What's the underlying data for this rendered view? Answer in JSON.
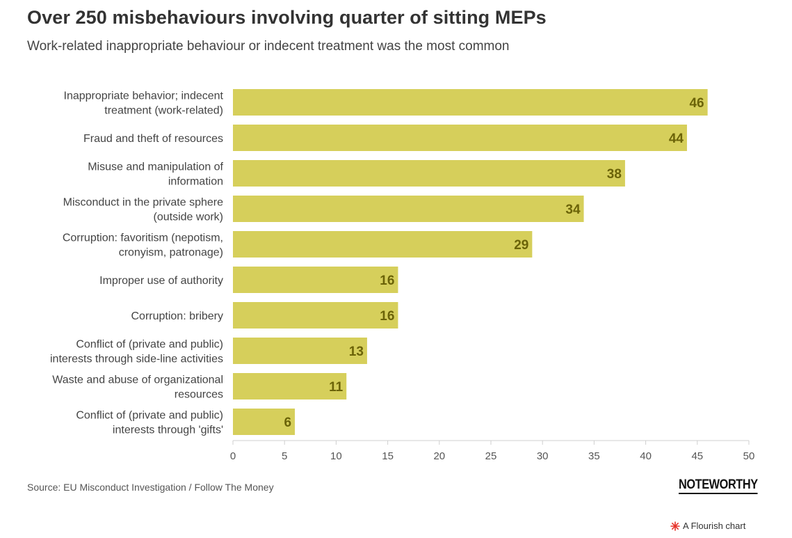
{
  "title": "Over 250 misbehaviours involving quarter of sitting MEPs",
  "subtitle": "Work-related inappropriate behaviour or indecent treatment was the most common",
  "source": "Source: EU Misconduct Investigation / Follow The Money",
  "brand": "NOTEWORTHY",
  "credit": "A Flourish chart",
  "colors": {
    "bar": "#d6cf5b",
    "label": "#6b6308",
    "axis": "#cfcfcf",
    "flourish": "#e6332a"
  },
  "chart_data": {
    "type": "bar",
    "orientation": "horizontal",
    "categories": [
      [
        "Inappropriate behavior; indecent",
        "treatment (work-related)"
      ],
      [
        "Fraud and theft of resources"
      ],
      [
        "Misuse and manipulation of",
        "information"
      ],
      [
        "Misconduct in the private sphere",
        "(outside work)"
      ],
      [
        "Corruption: favoritism (nepotism,",
        "cronyism, patronage)"
      ],
      [
        "Improper use of authority"
      ],
      [
        "Corruption: bribery"
      ],
      [
        "Conflict of (private and public)",
        "interests through side-line activities"
      ],
      [
        "Waste and abuse of organizational",
        "resources"
      ],
      [
        "Conflict of (private and public)",
        "interests through 'gifts'"
      ]
    ],
    "values": [
      46,
      44,
      38,
      34,
      29,
      16,
      16,
      13,
      11,
      6
    ],
    "xlim": [
      0,
      50
    ],
    "xticks": [
      0,
      5,
      10,
      15,
      20,
      25,
      30,
      35,
      40,
      45,
      50
    ],
    "grid": false
  }
}
